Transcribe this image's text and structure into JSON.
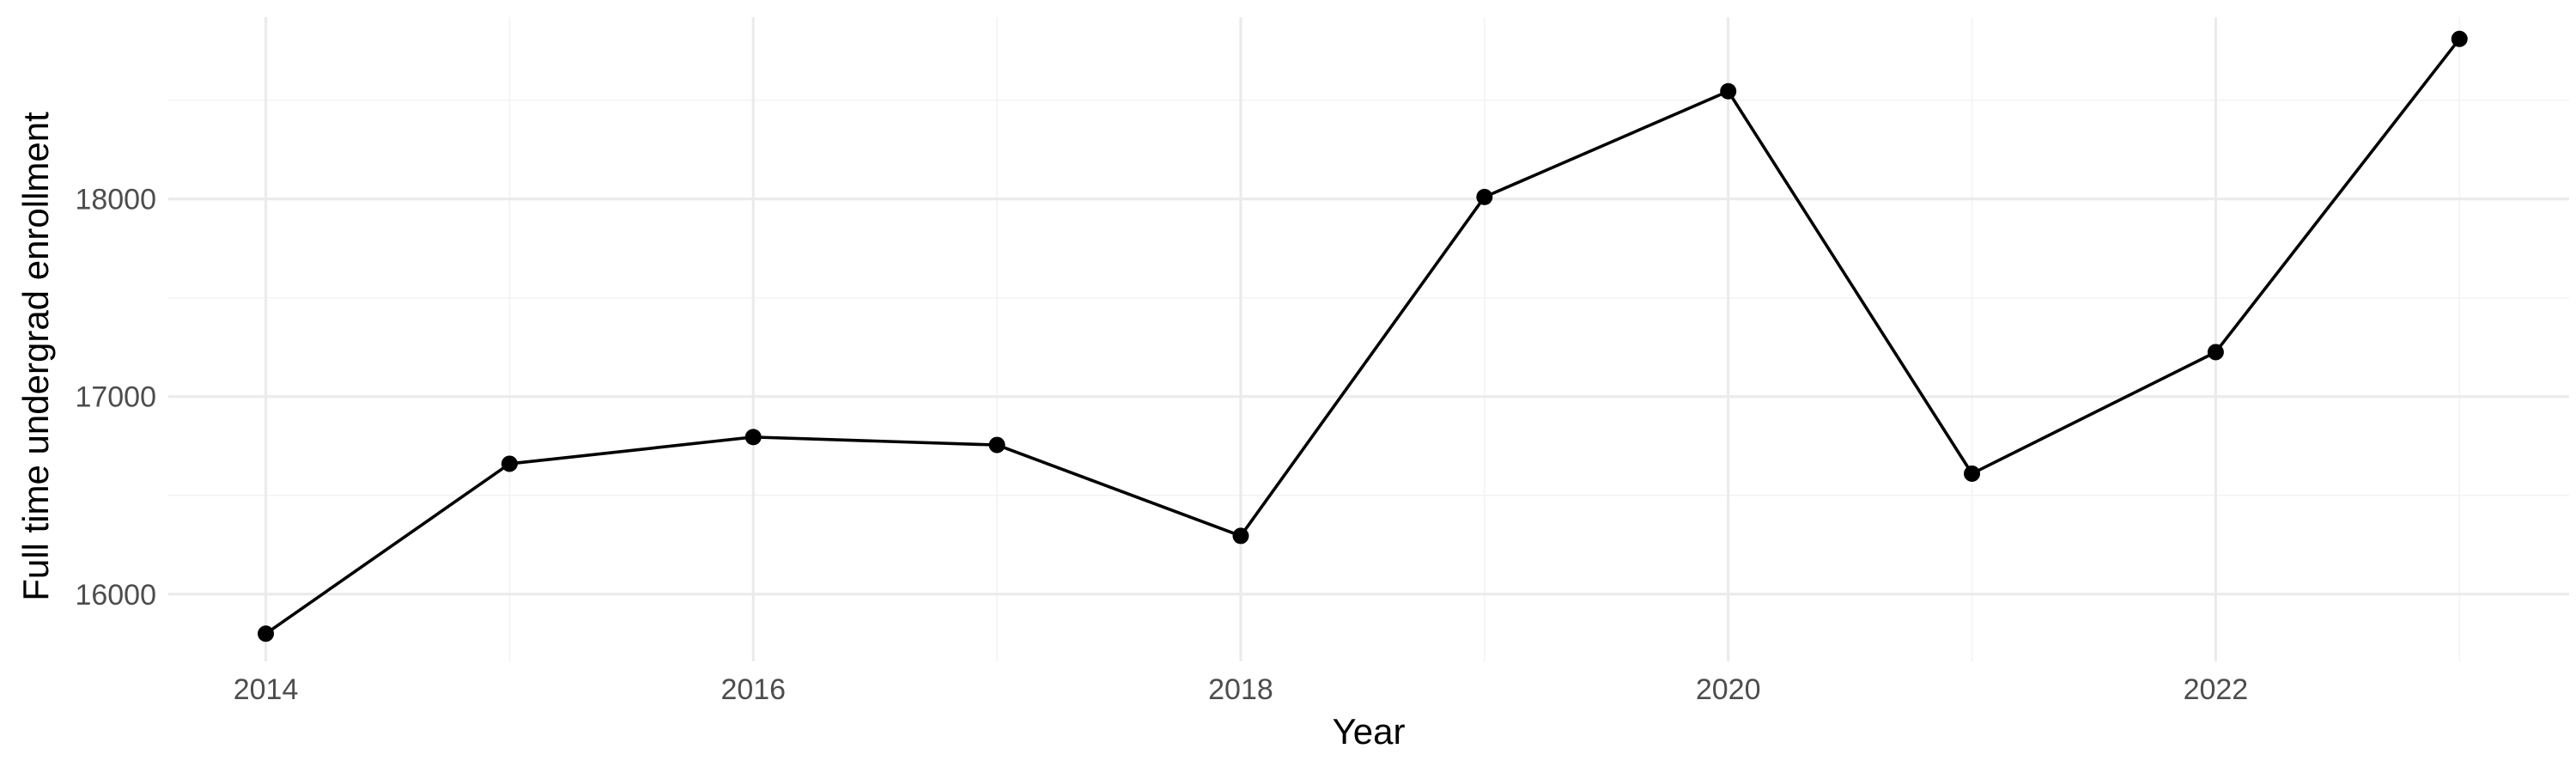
{
  "chart_data": {
    "type": "line",
    "title": "",
    "xlabel": "Year",
    "ylabel": "Full time undergrad enrollment",
    "x": [
      2014,
      2015,
      2016,
      2017,
      2018,
      2019,
      2020,
      2021,
      2022,
      2023
    ],
    "series": [
      {
        "values": [
          15800,
          16660,
          16795,
          16755,
          16295,
          18010,
          18545,
          16610,
          17225,
          18810
        ]
      }
    ],
    "xlim": [
      2013.6,
      2023.45
    ],
    "ylim": [
      15660,
      18920
    ],
    "x_ticks": [
      2014,
      2016,
      2018,
      2020,
      2022
    ],
    "x_tick_labels": [
      "2014",
      "2016",
      "2018",
      "2020",
      "2022"
    ],
    "x_minor_ticks": [
      2015,
      2017,
      2019,
      2021,
      2023
    ],
    "y_ticks": [
      16000,
      17000,
      18000
    ],
    "y_tick_labels": [
      "16000",
      "17000",
      "18000"
    ],
    "y_minor_ticks": [
      16500,
      17500,
      18500
    ],
    "grid": true,
    "legend": "none",
    "line_color": "#000000",
    "grid_color": "#ebebeb"
  }
}
